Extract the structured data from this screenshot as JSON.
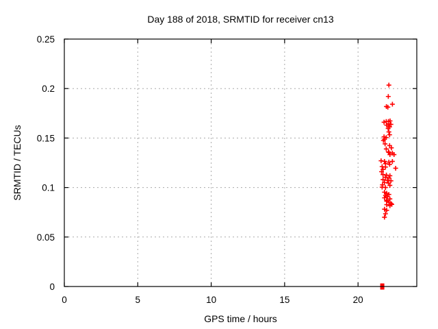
{
  "title": "Day 188 of 2018, SRMTID for receiver cn13",
  "chart_data": {
    "type": "scatter",
    "title": "Day 188 of 2018, SRMTID for receiver cn13",
    "xlabel": "GPS time / hours",
    "ylabel": "SRMTID / TECUs",
    "xlim": [
      0,
      24
    ],
    "ylim": [
      0,
      0.25
    ],
    "grid": true,
    "legend": "none",
    "grid_color": "#a8a8a8",
    "axis_color": "#000000",
    "xticks": {
      "values": [
        0,
        5,
        10,
        15,
        20
      ],
      "labels": [
        "0",
        "5",
        "10",
        "15",
        "20"
      ]
    },
    "yticks": {
      "values": [
        0,
        0.05,
        0.1,
        0.15,
        0.2,
        0.25
      ],
      "labels": [
        "0",
        "0.05",
        "0.1",
        "0.15",
        "0.2",
        "0.25"
      ]
    },
    "series": [
      {
        "name": "srmtid-points",
        "marker": "plus",
        "color": "#ff0000",
        "points": [
          [
            22.1,
            0.2035
          ],
          [
            22.06,
            0.192
          ],
          [
            22.34,
            0.1842
          ],
          [
            22.03,
            0.1812
          ],
          [
            21.93,
            0.1818
          ],
          [
            21.77,
            0.166
          ],
          [
            21.92,
            0.1667
          ],
          [
            22.07,
            0.1668
          ],
          [
            22.18,
            0.1673
          ],
          [
            22.07,
            0.1643
          ],
          [
            22.24,
            0.1638
          ],
          [
            21.95,
            0.163
          ],
          [
            22.15,
            0.1613
          ],
          [
            22.05,
            0.1597
          ],
          [
            22.1,
            0.1562
          ],
          [
            22.15,
            0.1533
          ],
          [
            21.77,
            0.1512
          ],
          [
            21.92,
            0.1505
          ],
          [
            21.8,
            0.1489
          ],
          [
            21.73,
            0.1475
          ],
          [
            21.84,
            0.1441
          ],
          [
            22.15,
            0.1424
          ],
          [
            22.27,
            0.1401
          ],
          [
            21.92,
            0.139
          ],
          [
            22.07,
            0.136
          ],
          [
            22.1,
            0.1355
          ],
          [
            22.34,
            0.1348
          ],
          [
            22.17,
            0.1333
          ],
          [
            22.45,
            0.1333
          ],
          [
            21.57,
            0.127
          ],
          [
            21.8,
            0.1264
          ],
          [
            22.1,
            0.1257
          ],
          [
            22.34,
            0.1264
          ],
          [
            21.87,
            0.1241
          ],
          [
            22.15,
            0.1234
          ],
          [
            21.64,
            0.1211
          ],
          [
            21.87,
            0.1207
          ],
          [
            21.7,
            0.1183
          ],
          [
            22.56,
            0.1195
          ],
          [
            21.6,
            0.116
          ],
          [
            21.7,
            0.1131
          ],
          [
            21.93,
            0.1126
          ],
          [
            22.17,
            0.1119
          ],
          [
            21.87,
            0.1103
          ],
          [
            22.1,
            0.1096
          ],
          [
            21.7,
            0.108
          ],
          [
            22.0,
            0.1073
          ],
          [
            22.24,
            0.1068
          ],
          [
            21.8,
            0.105
          ],
          [
            22.07,
            0.1045
          ],
          [
            21.66,
            0.1027
          ],
          [
            22.17,
            0.1022
          ],
          [
            21.64,
            0.1004
          ],
          [
            21.87,
            0.1
          ],
          [
            21.8,
            0.0953
          ],
          [
            21.95,
            0.0942
          ],
          [
            22.1,
            0.093
          ],
          [
            21.87,
            0.0919
          ],
          [
            22.0,
            0.0907
          ],
          [
            21.8,
            0.0896
          ],
          [
            22.17,
            0.0885
          ],
          [
            21.95,
            0.0872
          ],
          [
            21.95,
            0.0862
          ],
          [
            22.1,
            0.085
          ],
          [
            22.24,
            0.0838
          ],
          [
            22.3,
            0.083
          ],
          [
            21.95,
            0.0827
          ],
          [
            22.17,
            0.0816
          ],
          [
            21.8,
            0.0781
          ],
          [
            21.95,
            0.077
          ],
          [
            21.87,
            0.0735
          ],
          [
            21.8,
            0.07
          ]
        ]
      },
      {
        "name": "zero-level-marker",
        "marker": "filled-square",
        "color": "#ff0000",
        "points": [
          [
            21.65,
            0
          ]
        ]
      }
    ]
  }
}
